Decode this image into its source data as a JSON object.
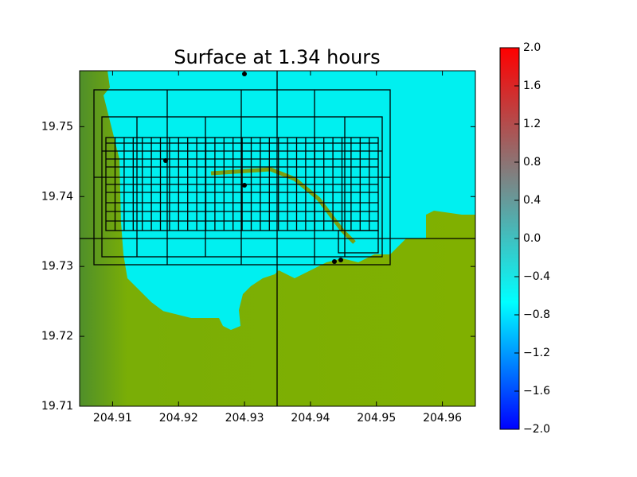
{
  "chart_data": {
    "type": "map",
    "title": "Surface at 1.34 hours",
    "xlim": [
      204.905,
      204.965
    ],
    "xticks": [
      204.91,
      204.92,
      204.93,
      204.94,
      204.95,
      204.96
    ],
    "ylim": [
      19.71,
      19.758
    ],
    "yticks": [
      19.71,
      19.72,
      19.73,
      19.74,
      19.75
    ],
    "colorbar": {
      "lim": [
        -2,
        2
      ],
      "colors": [
        "#0000ff",
        "#00ffff",
        "#808080",
        "#ff0000"
      ],
      "ticks": [
        {
          "value": -2,
          "label": "−2.0"
        },
        {
          "value": -1.6,
          "label": "−1.6"
        },
        {
          "value": -1.2,
          "label": "−1.2"
        },
        {
          "value": -0.8,
          "label": "−0.8"
        },
        {
          "value": -0.4,
          "label": "−0.4"
        },
        {
          "value": 0,
          "label": "0.0"
        },
        {
          "value": 0.4,
          "label": "0.4"
        },
        {
          "value": 0.8,
          "label": "0.8"
        },
        {
          "value": 1.2,
          "label": "1.2"
        },
        {
          "value": 1.6,
          "label": "1.6"
        },
        {
          "value": 2,
          "label": "2.0"
        }
      ]
    }
  }
}
